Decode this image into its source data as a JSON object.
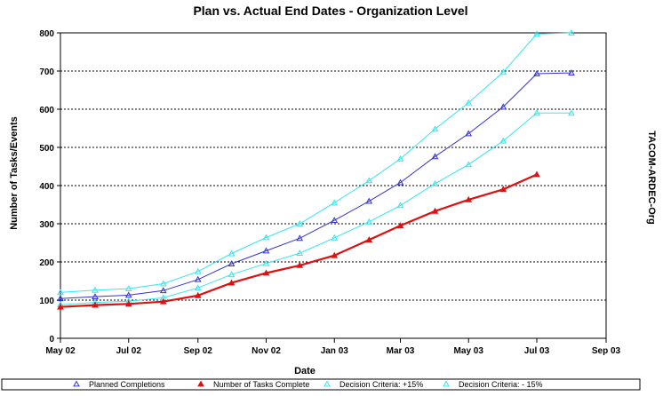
{
  "chart_data": {
    "type": "line",
    "title": "Plan vs. Actual End Dates - Organization Level",
    "xlabel": "Date",
    "ylabel": "Number of Tasks/Events",
    "side_label": "TACOM-ARDEC-Org",
    "ylim": [
      0,
      800
    ],
    "yticks": [
      "0",
      "100",
      "200",
      "300",
      "400",
      "500",
      "600",
      "700",
      "800"
    ],
    "xlim": [
      "2002-05-01",
      "2003-09-01"
    ],
    "xticks": [
      {
        "date": "2002-05-01",
        "label": "May 02"
      },
      {
        "date": "2002-07-01",
        "label": "Jul 02"
      },
      {
        "date": "2002-09-01",
        "label": "Sep 02"
      },
      {
        "date": "2002-11-01",
        "label": "Nov 02"
      },
      {
        "date": "2003-01-01",
        "label": "Jan 03"
      },
      {
        "date": "2003-03-01",
        "label": "Mar 03"
      },
      {
        "date": "2003-05-01",
        "label": "May 03"
      },
      {
        "date": "2003-07-01",
        "label": "Jul 03"
      },
      {
        "date": "2003-09-01",
        "label": "Sep 03"
      }
    ],
    "grid": "horizontal-dashed",
    "legend_position": "bottom",
    "series": [
      {
        "name": "Decision Criteria: +15%",
        "color": "#33e6f0",
        "marker": "triangle-open",
        "x": [
          "2002-05-01",
          "2002-06-01",
          "2002-07-01",
          "2002-08-01",
          "2002-09-01",
          "2002-10-01",
          "2002-11-01",
          "2002-12-01",
          "2003-01-01",
          "2003-02-01",
          "2003-03-01",
          "2003-04-01",
          "2003-05-01",
          "2003-06-01",
          "2003-07-01",
          "2003-08-01"
        ],
        "values": [
          120,
          126,
          130,
          143,
          175,
          222,
          264,
          300,
          355,
          413,
          470,
          548,
          617,
          697,
          797,
          800
        ]
      },
      {
        "name": "Decision Criteria: - 15%",
        "color": "#33e6f0",
        "marker": "triangle-open",
        "x": [
          "2002-05-01",
          "2002-06-01",
          "2002-07-01",
          "2002-08-01",
          "2002-09-01",
          "2002-10-01",
          "2002-11-01",
          "2002-12-01",
          "2003-01-01",
          "2003-02-01",
          "2003-03-01",
          "2003-04-01",
          "2003-05-01",
          "2003-06-01",
          "2003-07-01",
          "2003-08-01"
        ],
        "values": [
          88,
          94,
          97,
          106,
          132,
          167,
          196,
          223,
          263,
          305,
          348,
          405,
          455,
          517,
          590,
          590
        ]
      },
      {
        "name": "Planned Completions",
        "color": "#3333cc",
        "marker": "triangle-open",
        "x": [
          "2002-05-01",
          "2002-06-01",
          "2002-07-01",
          "2002-08-01",
          "2002-09-01",
          "2002-10-01",
          "2002-11-01",
          "2002-12-01",
          "2003-01-01",
          "2003-02-01",
          "2003-03-01",
          "2003-04-01",
          "2003-05-01",
          "2003-06-01",
          "2003-07-01",
          "2003-08-01"
        ],
        "values": [
          104,
          109,
          113,
          125,
          154,
          195,
          229,
          262,
          309,
          359,
          408,
          476,
          536,
          606,
          693,
          695
        ]
      },
      {
        "name": "Number of Tasks Complete",
        "color": "#e01010",
        "marker": "triangle-filled",
        "x": [
          "2002-05-01",
          "2002-06-01",
          "2002-07-01",
          "2002-08-01",
          "2002-09-01",
          "2002-10-01",
          "2002-11-01",
          "2002-12-01",
          "2003-01-01",
          "2003-02-01",
          "2003-03-01",
          "2003-04-01",
          "2003-05-01",
          "2003-06-01",
          "2003-07-01"
        ],
        "values": [
          82,
          87,
          90,
          96,
          112,
          145,
          171,
          191,
          217,
          258,
          295,
          333,
          363,
          390,
          429
        ]
      }
    ]
  },
  "legend": [
    {
      "label": "Planned Completions",
      "color": "#3333cc",
      "marker": "triangle-open"
    },
    {
      "label": "Number of Tasks Complete",
      "color": "#e01010",
      "marker": "triangle-filled"
    },
    {
      "label": "Decision Criteria: +15%",
      "color": "#33e6f0",
      "marker": "triangle-open"
    },
    {
      "label": "Decision Criteria: - 15%",
      "color": "#33e6f0",
      "marker": "triangle-open"
    }
  ]
}
